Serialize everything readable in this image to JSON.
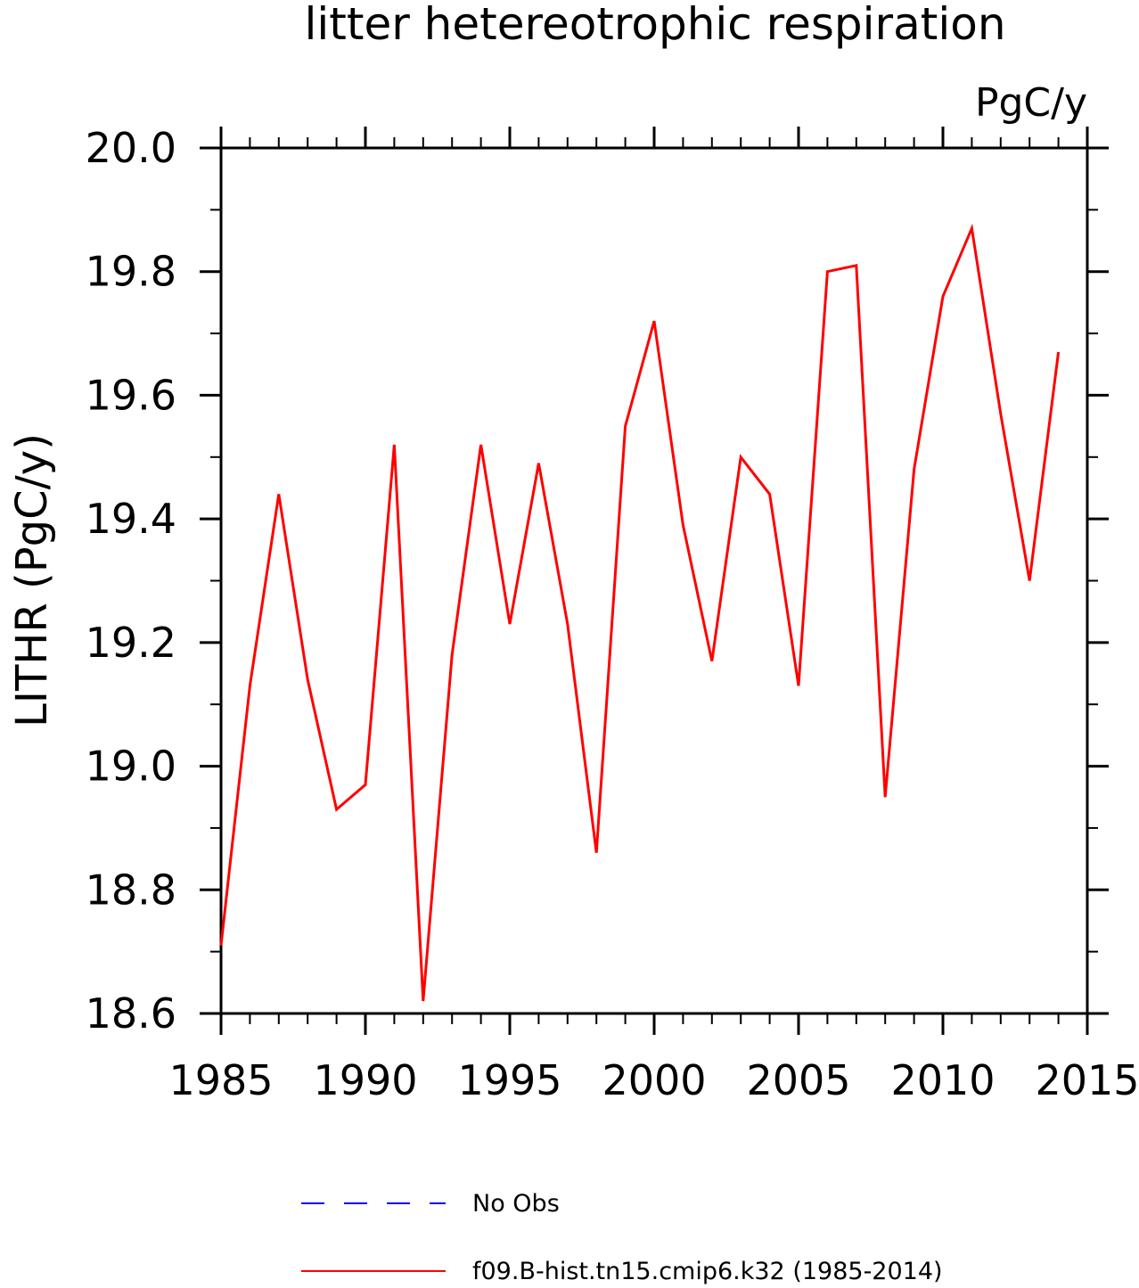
{
  "chart_data": {
    "type": "line",
    "title": "litter hetereotrophic respiration",
    "units": "PgC/y",
    "ylabel": "LITHR  (PgC/y)",
    "xlabel": "",
    "xlim": [
      1985,
      2015
    ],
    "ylim": [
      18.6,
      20.0
    ],
    "xticks": [
      1985,
      1990,
      1995,
      2000,
      2005,
      2010,
      2015
    ],
    "xtick_labels": [
      "1985",
      "1990",
      "1995",
      "2000",
      "2005",
      "2010",
      "2015"
    ],
    "yticks": [
      18.6,
      18.8,
      19.0,
      19.2,
      19.4,
      19.6,
      19.8,
      20.0
    ],
    "ytick_labels": [
      "18.6",
      "18.8",
      "19.0",
      "19.2",
      "19.4",
      "19.6",
      "19.8",
      "20.0"
    ],
    "legend": [
      {
        "label": "No Obs",
        "color": "#0000ff",
        "style": "dashed"
      },
      {
        "label": "f09.B-hist.tn15.cmip6.k32 (1985-2014)",
        "color": "#ff0000",
        "style": "solid"
      }
    ],
    "series": [
      {
        "color": "#ff0000",
        "x": [
          1985,
          1986,
          1987,
          1988,
          1989,
          1990,
          1991,
          1992,
          1993,
          1994,
          1995,
          1996,
          1997,
          1998,
          1999,
          2000,
          2001,
          2002,
          2003,
          2004,
          2005,
          2006,
          2007,
          2008,
          2009,
          2010,
          2011,
          2012,
          2013,
          2014
        ],
        "y": [
          18.71,
          19.13,
          19.44,
          19.14,
          18.93,
          18.97,
          19.52,
          18.62,
          19.18,
          19.52,
          19.23,
          19.49,
          19.23,
          18.86,
          19.55,
          19.72,
          19.39,
          19.17,
          19.5,
          19.44,
          19.13,
          19.8,
          19.81,
          18.95,
          19.48,
          19.76,
          19.87,
          19.57,
          19.3,
          19.67
        ]
      }
    ]
  }
}
